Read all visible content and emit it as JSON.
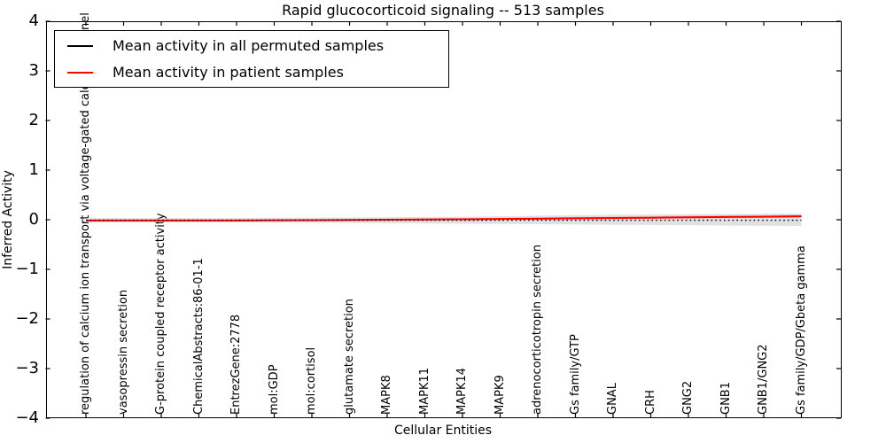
{
  "title": "Rapid glucocorticoid signaling -- 513 samples",
  "legend": {
    "items": [
      {
        "label": "Mean activity in all permuted samples",
        "color": "#000000"
      },
      {
        "label": "Mean activity in patient samples",
        "color": "#ff0000"
      }
    ]
  },
  "axes": {
    "xlabel": "Cellular Entities",
    "ylabel": "Inferred Activity"
  },
  "chart_data": {
    "type": "line",
    "title": "Rapid glucocorticoid signaling -- 513 samples",
    "xlabel": "Cellular Entities",
    "ylabel": "Inferred Activity",
    "ylim": [
      -4,
      4
    ],
    "yticks": [
      4,
      3,
      2,
      1,
      0,
      -1,
      -2,
      -3,
      -4
    ],
    "grid": false,
    "legend_position": "upper left",
    "categories": [
      "regulation of calcium ion transport via voltage-gated calcium channel",
      "vasopressin secretion",
      "G-protein coupled receptor activity",
      "ChemicalAbstracts:86-01-1",
      "EntrezGene:2778",
      "mol:GDP",
      "mol:cortisol",
      "glutamate secretion",
      "MAPK8",
      "MAPK11",
      "MAPK14",
      "MAPK9",
      "adrenocorticotropin secretion",
      "Gs family/GTP",
      "GNAL",
      "CRH",
      "GNG2",
      "GNB1",
      "GNB1/GNG2",
      "Gs family/GDP/Gbeta gamma"
    ],
    "series": [
      {
        "name": "Mean activity in all permuted samples",
        "color": "#000000",
        "line_style": "dotted",
        "values": [
          -0.01,
          -0.01,
          -0.01,
          -0.01,
          -0.01,
          -0.01,
          -0.01,
          -0.01,
          -0.01,
          -0.01,
          -0.01,
          -0.01,
          -0.01,
          -0.01,
          -0.01,
          -0.01,
          -0.01,
          -0.01,
          -0.01,
          -0.01
        ]
      },
      {
        "name": "Mean activity in patient samples",
        "color": "#ff0000",
        "line_style": "solid",
        "values": [
          -0.015,
          -0.015,
          -0.015,
          -0.015,
          -0.015,
          -0.012,
          -0.01,
          -0.005,
          0,
          0.005,
          0.01,
          0.015,
          0.02,
          0.03,
          0.035,
          0.04,
          0.05,
          0.055,
          0.06,
          0.07
        ]
      }
    ],
    "bands": [
      {
        "name": "permuted samples spread",
        "color": "#c8c8c8",
        "opacity": 0.55,
        "upper": [
          0.035,
          0.035,
          0.035,
          0.035,
          0.035,
          0.04,
          0.04,
          0.045,
          0.05,
          0.055,
          0.06,
          0.07,
          0.08,
          0.09,
          0.1,
          0.105,
          0.11,
          0.115,
          0.12,
          0.125
        ],
        "lower": [
          -0.055,
          -0.055,
          -0.055,
          -0.055,
          -0.055,
          -0.06,
          -0.06,
          -0.065,
          -0.07,
          -0.075,
          -0.08,
          -0.085,
          -0.09,
          -0.095,
          -0.1,
          -0.105,
          -0.11,
          -0.115,
          -0.12,
          -0.125
        ]
      },
      {
        "name": "patient samples spread",
        "color": "#ff0000",
        "opacity": 0.16,
        "upper": [
          0,
          0,
          0,
          0,
          0,
          0.005,
          0.01,
          0.015,
          0.02,
          0.025,
          0.03,
          0.04,
          0.05,
          0.055,
          0.06,
          0.07,
          0.08,
          0.085,
          0.09,
          0.095
        ],
        "lower": [
          -0.03,
          -0.03,
          -0.03,
          -0.03,
          -0.03,
          -0.03,
          -0.03,
          -0.025,
          -0.02,
          -0.015,
          -0.01,
          -0.005,
          0,
          0.005,
          0.01,
          0.015,
          0.02,
          0.03,
          0.035,
          0.04
        ]
      }
    ]
  }
}
